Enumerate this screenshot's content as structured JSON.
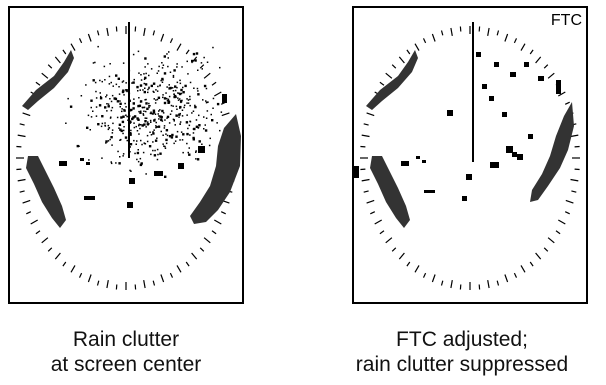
{
  "colors": {
    "frame": "#000000",
    "echo": "#333333",
    "target": "#000000",
    "background": "#ffffff"
  },
  "left_panel": {
    "caption_line1": "Rain clutter",
    "caption_line2": "at screen center",
    "rain_clutter": "present"
  },
  "right_panel": {
    "corner_label": "FTC",
    "caption_line1": "FTC adjusted;",
    "caption_line2": "rain clutter suppressed",
    "rain_clutter": "suppressed"
  }
}
